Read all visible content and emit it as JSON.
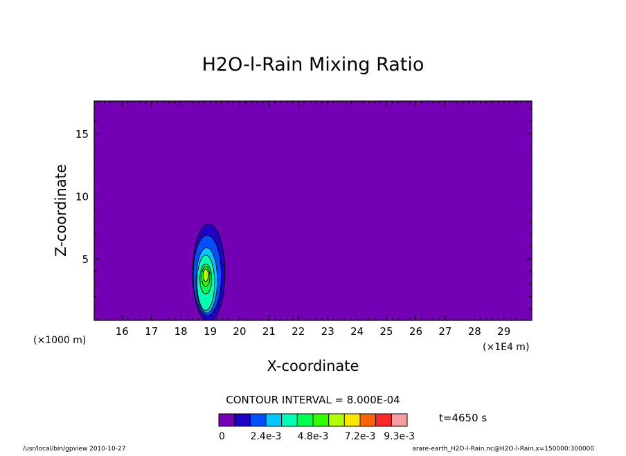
{
  "chart_data": {
    "type": "contour",
    "title": "H2O-l-Rain Mixing Ratio",
    "xlabel": "X-coordinate",
    "ylabel": "Z-coordinate",
    "x_unit_left": "(×1000 m)",
    "x_unit_right": "(×1E4 m)",
    "xlim": [
      15.05,
      29.95
    ],
    "ylim": [
      0.1,
      17.6
    ],
    "x_ticks": [
      "16",
      "17",
      "18",
      "19",
      "20",
      "21",
      "22",
      "23",
      "24",
      "25",
      "26",
      "27",
      "28",
      "29"
    ],
    "y_ticks": [
      "5",
      "10",
      "15"
    ],
    "x_tick_values": [
      16,
      17,
      18,
      19,
      20,
      21,
      22,
      23,
      24,
      25,
      26,
      27,
      28,
      29
    ],
    "y_tick_values": [
      5,
      10,
      15
    ],
    "background_color": "#7300b4",
    "contour_interval_text": "CONTOUR INTERVAL = 8.000E-04",
    "time_text": "t=4650 s",
    "colorbar": {
      "colors": [
        "#7300b4",
        "#1e00c8",
        "#0050ff",
        "#00c8ff",
        "#00ffb4",
        "#00ff50",
        "#32ff00",
        "#b4ff00",
        "#ffe600",
        "#ff6400",
        "#ff2828",
        "#f5a0a0"
      ],
      "labels": [
        "0",
        "2.4e-3",
        "4.8e-3",
        "7.2e-3",
        "9.3e-3"
      ],
      "label_positions": [
        0,
        3,
        6,
        9,
        11.5
      ]
    },
    "contours": [
      {
        "level": 1,
        "color": "#1e00c8",
        "cx": 18.95,
        "cy": 3.9,
        "rx": 0.55,
        "ry": 3.9
      },
      {
        "level": 2,
        "color": "#0050ff",
        "cx": 18.9,
        "cy": 3.7,
        "rx": 0.48,
        "ry": 3.2
      },
      {
        "level": 3,
        "color": "#00c8ff",
        "cx": 18.88,
        "cy": 3.3,
        "rx": 0.36,
        "ry": 2.6
      },
      {
        "level": 4,
        "color": "#00ffb4",
        "cx": 18.85,
        "cy": 3.1,
        "rx": 0.3,
        "ry": 2.2
      },
      {
        "level": 5,
        "color": "#00ff50",
        "cx": 18.85,
        "cy": 3.4,
        "rx": 0.2,
        "ry": 1.2
      },
      {
        "level": 6,
        "color": "#32ff00",
        "cx": 18.85,
        "cy": 3.6,
        "rx": 0.14,
        "ry": 0.8
      },
      {
        "level": 7,
        "color": "#b4ff00",
        "cx": 18.85,
        "cy": 3.7,
        "rx": 0.09,
        "ry": 0.5
      }
    ]
  },
  "footer": {
    "left": "/usr/local/bin/gpview   2010-10-27",
    "right": "arare-earth_H2O-l-Rain.nc@H2O-l-Rain,x=150000:300000"
  }
}
